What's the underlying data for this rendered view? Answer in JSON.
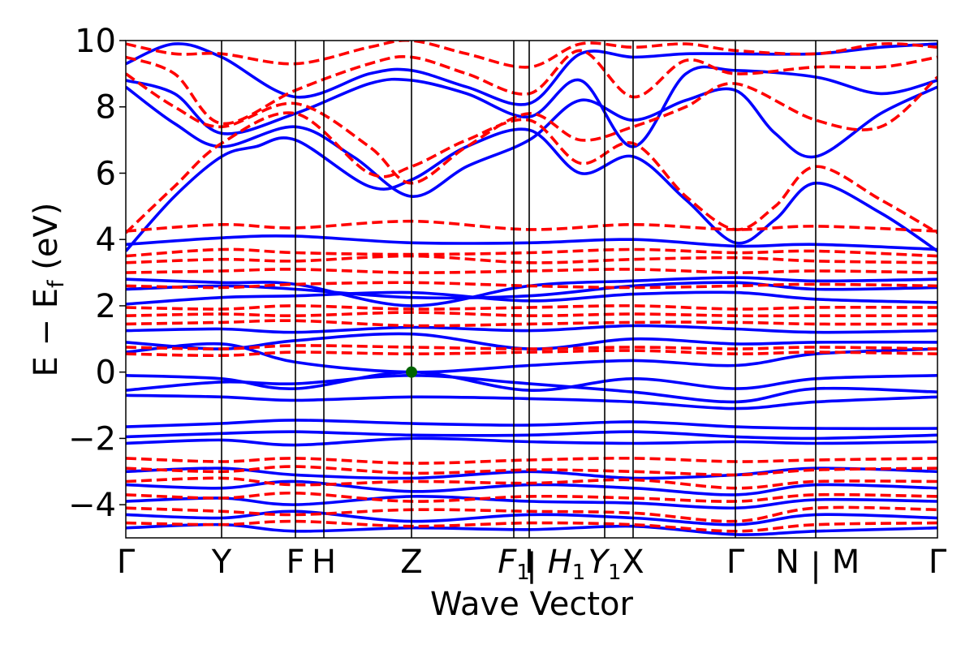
{
  "chart_data": {
    "type": "line",
    "xlabel": "Wave Vector",
    "ylabel": "E − E_f (eV)",
    "ylabel_parts": {
      "main": "E − E",
      "sub": "f",
      "unit": " (eV)"
    },
    "ylim": [
      -5,
      10
    ],
    "yticks": [
      "−4",
      "−2",
      "0",
      "2",
      "4",
      "6",
      "8",
      "10"
    ],
    "ytick_values": [
      -4,
      -2,
      0,
      2,
      4,
      6,
      8,
      10
    ],
    "grid": false,
    "legend": "none",
    "colors": {
      "spin_up": "#0000ff",
      "spin_down": "#ff0000",
      "marker": "#006400"
    },
    "kpoints": [
      {
        "label": "Γ",
        "x": 0.0
      },
      {
        "label": "Y",
        "x": 0.118
      },
      {
        "label": "F",
        "x": 0.209
      },
      {
        "label": "H",
        "x": 0.244
      },
      {
        "label": "Z",
        "x": 0.352
      },
      {
        "label": "F",
        "sub": "1",
        "x": 0.478
      },
      {
        "label": "I",
        "x": 0.497
      },
      {
        "label": "|",
        "x": 0.5
      },
      {
        "label": "H",
        "sub": "1",
        "x": 0.543
      },
      {
        "label": "Y",
        "sub": "1",
        "x": 0.59
      },
      {
        "label": "X",
        "x": 0.625
      },
      {
        "label": "Γ",
        "x": 0.751
      },
      {
        "label": "N",
        "x": 0.815
      },
      {
        "label": "|",
        "x": 0.85
      },
      {
        "label": "M",
        "x": 0.887
      },
      {
        "label": "Γ",
        "x": 1.0
      }
    ],
    "vertical_lines": [
      0.118,
      0.209,
      0.244,
      0.352,
      0.478,
      0.497,
      0.59,
      0.625,
      0.751,
      0.85
    ],
    "marker": {
      "x": 0.352,
      "y": 0.0
    },
    "series": [
      {
        "spin": "up",
        "x": [
          0,
          0.118,
          0.209,
          0.352,
          0.497,
          0.625,
          0.751,
          0.85,
          1.0
        ],
        "y": [
          -0.55,
          -0.3,
          -0.35,
          -0.1,
          -0.35,
          -0.6,
          -0.9,
          -0.5,
          -0.6
        ]
      },
      {
        "spin": "up",
        "x": [
          0,
          0.118,
          0.209,
          0.352,
          0.497,
          0.625,
          0.751,
          0.85,
          1.0
        ],
        "y": [
          -0.7,
          -0.75,
          -0.85,
          -0.75,
          -0.8,
          -0.9,
          -1.1,
          -0.9,
          -0.75
        ]
      },
      {
        "spin": "up",
        "x": [
          0,
          0.118,
          0.209,
          0.352,
          0.497,
          0.625,
          0.751,
          0.85,
          1.0
        ],
        "y": [
          -0.1,
          -0.2,
          -0.5,
          0.0,
          -0.55,
          -0.2,
          -0.5,
          -0.2,
          -0.1
        ]
      },
      {
        "spin": "up",
        "x": [
          0,
          0.118,
          0.209,
          0.352,
          0.497,
          0.625,
          0.751,
          0.85,
          1.0
        ],
        "y": [
          0.6,
          0.85,
          0.3,
          0.0,
          0.2,
          0.35,
          0.2,
          0.55,
          0.7
        ]
      },
      {
        "spin": "up",
        "x": [
          0,
          0.118,
          0.209,
          0.352,
          0.497,
          0.625,
          0.751,
          0.85,
          1.0
        ],
        "y": [
          0.9,
          0.7,
          0.95,
          1.15,
          0.7,
          1.0,
          0.85,
          0.9,
          0.9
        ]
      },
      {
        "spin": "up",
        "x": [
          0,
          0.118,
          0.209,
          0.352,
          0.497,
          0.625,
          0.751,
          0.85,
          1.0
        ],
        "y": [
          1.25,
          1.3,
          1.2,
          1.35,
          1.25,
          1.4,
          1.3,
          1.2,
          1.25
        ]
      },
      {
        "spin": "up",
        "x": [
          0,
          0.118,
          0.209,
          0.352,
          0.497,
          0.625,
          0.751,
          0.85,
          1.0
        ],
        "y": [
          2.05,
          2.25,
          2.3,
          2.4,
          2.15,
          2.35,
          2.4,
          2.2,
          2.1
        ]
      },
      {
        "spin": "up",
        "x": [
          0,
          0.118,
          0.209,
          0.352,
          0.497,
          0.625,
          0.751,
          0.85,
          1.0
        ],
        "y": [
          2.5,
          2.6,
          2.5,
          2.25,
          2.3,
          2.6,
          2.7,
          2.5,
          2.55
        ]
      },
      {
        "spin": "up",
        "x": [
          0,
          0.118,
          0.209,
          0.352,
          0.497,
          0.625,
          0.751,
          0.85,
          1.0
        ],
        "y": [
          2.8,
          2.7,
          2.65,
          2.0,
          2.6,
          2.75,
          2.85,
          2.75,
          2.8
        ]
      },
      {
        "spin": "up",
        "x": [
          0,
          0.118,
          0.209,
          0.352,
          0.497,
          0.625,
          0.751,
          0.85,
          1.0
        ],
        "y": [
          3.85,
          4.05,
          4.1,
          3.9,
          3.9,
          4.0,
          3.8,
          3.85,
          3.7
        ]
      },
      {
        "spin": "up",
        "x": [
          0,
          0.118,
          0.209,
          0.352,
          0.497,
          0.625,
          0.751,
          0.85,
          1.0
        ],
        "y": [
          -1.65,
          -1.55,
          -1.45,
          -1.55,
          -1.6,
          -1.5,
          -1.65,
          -1.7,
          -1.7
        ]
      },
      {
        "spin": "up",
        "x": [
          0,
          0.118,
          0.209,
          0.352,
          0.497,
          0.625,
          0.751,
          0.85,
          1.0
        ],
        "y": [
          -1.95,
          -1.85,
          -1.8,
          -1.9,
          -1.9,
          -1.8,
          -1.95,
          -2.0,
          -1.9
        ]
      },
      {
        "spin": "up",
        "x": [
          0,
          0.118,
          0.209,
          0.352,
          0.497,
          0.625,
          0.751,
          0.85,
          1.0
        ],
        "y": [
          -2.15,
          -2.05,
          -2.2,
          -2.0,
          -2.1,
          -2.15,
          -2.1,
          -2.15,
          -2.1
        ]
      },
      {
        "spin": "up",
        "x": [
          0,
          0.118,
          0.209,
          0.352,
          0.497,
          0.625,
          0.751,
          0.85,
          1.0
        ],
        "y": [
          -3.0,
          -2.9,
          -3.1,
          -3.2,
          -3.0,
          -3.2,
          -3.1,
          -2.9,
          -3.0
        ]
      },
      {
        "spin": "up",
        "x": [
          0,
          0.118,
          0.209,
          0.352,
          0.497,
          0.625,
          0.751,
          0.85,
          1.0
        ],
        "y": [
          -3.4,
          -3.5,
          -3.3,
          -3.6,
          -3.4,
          -3.5,
          -3.7,
          -3.4,
          -3.5
        ]
      },
      {
        "spin": "up",
        "x": [
          0,
          0.118,
          0.209,
          0.352,
          0.497,
          0.625,
          0.751,
          0.85,
          1.0
        ],
        "y": [
          -3.9,
          -3.8,
          -4.0,
          -3.75,
          -3.9,
          -3.95,
          -4.1,
          -3.85,
          -3.9
        ]
      },
      {
        "spin": "up",
        "x": [
          0,
          0.118,
          0.209,
          0.352,
          0.497,
          0.625,
          0.751,
          0.85,
          1.0
        ],
        "y": [
          -4.3,
          -4.4,
          -4.2,
          -4.5,
          -4.3,
          -4.4,
          -4.6,
          -4.3,
          -4.4
        ]
      },
      {
        "spin": "up",
        "x": [
          0,
          0.118,
          0.209,
          0.352,
          0.497,
          0.625,
          0.751,
          0.85,
          1.0
        ],
        "y": [
          -4.7,
          -4.6,
          -4.8,
          -4.7,
          -4.75,
          -4.65,
          -4.9,
          -4.8,
          -4.7
        ]
      },
      {
        "spin": "up",
        "x": [
          0,
          0.06,
          0.118,
          0.16,
          0.209,
          0.3,
          0.352,
          0.42,
          0.497,
          0.56,
          0.625,
          0.69,
          0.751,
          0.8,
          0.85,
          0.93,
          1.0
        ],
        "y": [
          3.65,
          5.3,
          6.5,
          6.8,
          7.0,
          5.6,
          5.8,
          6.8,
          7.3,
          6.0,
          6.5,
          5.2,
          3.9,
          4.6,
          5.7,
          4.8,
          3.65
        ]
      },
      {
        "spin": "up",
        "x": [
          0,
          0.06,
          0.118,
          0.209,
          0.28,
          0.352,
          0.42,
          0.497,
          0.56,
          0.625,
          0.69,
          0.751,
          0.8,
          0.85,
          0.93,
          1.0
        ],
        "y": [
          8.6,
          7.5,
          6.8,
          7.4,
          6.5,
          5.3,
          6.2,
          7.0,
          8.2,
          7.6,
          8.2,
          8.5,
          7.2,
          6.5,
          7.8,
          8.6
        ]
      },
      {
        "spin": "up",
        "x": [
          0,
          0.06,
          0.118,
          0.209,
          0.3,
          0.352,
          0.42,
          0.497,
          0.56,
          0.625,
          0.69,
          0.751,
          0.85,
          0.93,
          1.0
        ],
        "y": [
          8.8,
          8.4,
          7.2,
          7.8,
          8.7,
          8.8,
          8.4,
          7.7,
          8.8,
          6.8,
          9.0,
          9.1,
          8.9,
          8.4,
          8.8
        ]
      },
      {
        "spin": "up",
        "x": [
          0,
          0.06,
          0.118,
          0.209,
          0.3,
          0.352,
          0.42,
          0.497,
          0.56,
          0.625,
          0.69,
          0.751,
          0.85,
          0.93,
          1.0
        ],
        "y": [
          9.3,
          9.9,
          9.5,
          8.3,
          9.0,
          9.1,
          8.6,
          8.1,
          9.6,
          9.5,
          9.6,
          9.6,
          9.6,
          9.8,
          9.9
        ]
      },
      {
        "spin": "down",
        "x": [
          0,
          0.118,
          0.209,
          0.352,
          0.497,
          0.625,
          0.751,
          0.85,
          1.0
        ],
        "y": [
          0.55,
          0.5,
          0.6,
          0.55,
          0.6,
          0.65,
          0.55,
          0.6,
          0.55
        ]
      },
      {
        "spin": "down",
        "x": [
          0,
          0.118,
          0.209,
          0.352,
          0.497,
          0.625,
          0.751,
          0.85,
          1.0
        ],
        "y": [
          0.75,
          0.7,
          0.8,
          0.75,
          0.7,
          0.75,
          0.7,
          0.75,
          0.7
        ]
      },
      {
        "spin": "down",
        "x": [
          0,
          0.118,
          0.209,
          0.352,
          0.497,
          0.625,
          0.751,
          0.85,
          1.0
        ],
        "y": [
          1.45,
          1.5,
          1.55,
          1.4,
          1.45,
          1.5,
          1.5,
          1.45,
          1.45
        ]
      },
      {
        "spin": "down",
        "x": [
          0,
          0.118,
          0.209,
          0.352,
          0.497,
          0.625,
          0.751,
          0.85,
          1.0
        ],
        "y": [
          1.7,
          1.75,
          1.7,
          1.8,
          1.7,
          1.75,
          1.7,
          1.7,
          1.7
        ]
      },
      {
        "spin": "down",
        "x": [
          0,
          0.118,
          0.209,
          0.352,
          0.497,
          0.625,
          0.751,
          0.85,
          1.0
        ],
        "y": [
          1.95,
          1.9,
          2.0,
          1.9,
          1.95,
          2.0,
          1.9,
          1.95,
          1.95
        ]
      },
      {
        "spin": "down",
        "x": [
          0,
          0.118,
          0.209,
          0.352,
          0.497,
          0.625,
          0.751,
          0.85,
          1.0
        ],
        "y": [
          2.6,
          2.55,
          2.65,
          2.7,
          2.6,
          2.55,
          2.6,
          2.65,
          2.6
        ]
      },
      {
        "spin": "down",
        "x": [
          0,
          0.118,
          0.209,
          0.352,
          0.497,
          0.625,
          0.751,
          0.85,
          1.0
        ],
        "y": [
          3.0,
          3.05,
          3.1,
          3.0,
          3.05,
          3.1,
          3.0,
          3.05,
          3.0
        ]
      },
      {
        "spin": "down",
        "x": [
          0,
          0.118,
          0.209,
          0.352,
          0.497,
          0.625,
          0.751,
          0.85,
          1.0
        ],
        "y": [
          3.3,
          3.4,
          3.35,
          3.5,
          3.3,
          3.4,
          3.45,
          3.35,
          3.3
        ]
      },
      {
        "spin": "down",
        "x": [
          0,
          0.118,
          0.209,
          0.352,
          0.497,
          0.625,
          0.751,
          0.85,
          1.0
        ],
        "y": [
          3.5,
          3.7,
          3.6,
          3.55,
          3.6,
          3.7,
          3.6,
          3.65,
          3.5
        ]
      },
      {
        "spin": "down",
        "x": [
          0,
          0.118,
          0.209,
          0.352,
          0.497,
          0.625,
          0.751,
          0.85,
          1.0
        ],
        "y": [
          4.25,
          4.45,
          4.35,
          4.55,
          4.3,
          4.45,
          4.3,
          4.4,
          4.25
        ]
      },
      {
        "spin": "down",
        "x": [
          0,
          0.118,
          0.209,
          0.352,
          0.497,
          0.625,
          0.751,
          0.85,
          1.0
        ],
        "y": [
          -2.6,
          -2.7,
          -2.6,
          -2.75,
          -2.65,
          -2.6,
          -2.7,
          -2.65,
          -2.6
        ]
      },
      {
        "spin": "down",
        "x": [
          0,
          0.118,
          0.209,
          0.352,
          0.497,
          0.625,
          0.751,
          0.85,
          1.0
        ],
        "y": [
          -2.9,
          -3.0,
          -2.85,
          -3.05,
          -2.95,
          -3.0,
          -3.1,
          -2.95,
          -2.9
        ]
      },
      {
        "spin": "down",
        "x": [
          0,
          0.118,
          0.209,
          0.352,
          0.497,
          0.625,
          0.751,
          0.85,
          1.0
        ],
        "y": [
          -3.3,
          -3.2,
          -3.4,
          -3.3,
          -3.35,
          -3.25,
          -3.5,
          -3.3,
          -3.3
        ]
      },
      {
        "spin": "down",
        "x": [
          0,
          0.118,
          0.209,
          0.352,
          0.497,
          0.625,
          0.751,
          0.85,
          1.0
        ],
        "y": [
          -3.7,
          -3.8,
          -3.65,
          -3.9,
          -3.75,
          -3.8,
          -3.9,
          -3.7,
          -3.75
        ]
      },
      {
        "spin": "down",
        "x": [
          0,
          0.118,
          0.209,
          0.352,
          0.497,
          0.625,
          0.751,
          0.85,
          1.0
        ],
        "y": [
          -4.1,
          -4.2,
          -4.3,
          -4.15,
          -4.2,
          -4.25,
          -4.5,
          -4.1,
          -4.15
        ]
      },
      {
        "spin": "down",
        "x": [
          0,
          0.118,
          0.209,
          0.352,
          0.497,
          0.625,
          0.751,
          0.85,
          1.0
        ],
        "y": [
          -4.55,
          -4.6,
          -4.5,
          -4.65,
          -4.55,
          -4.6,
          -4.8,
          -4.6,
          -4.55
        ]
      },
      {
        "spin": "down",
        "x": [
          0,
          0.06,
          0.118,
          0.209,
          0.3,
          0.352,
          0.42,
          0.497,
          0.56,
          0.625,
          0.69,
          0.751,
          0.8,
          0.85,
          0.93,
          1.0
        ],
        "y": [
          4.2,
          5.6,
          6.9,
          7.8,
          6.0,
          6.2,
          7.0,
          7.6,
          6.3,
          6.9,
          5.3,
          4.3,
          5.0,
          6.2,
          5.2,
          4.2
        ]
      },
      {
        "spin": "down",
        "x": [
          0,
          0.06,
          0.118,
          0.209,
          0.3,
          0.352,
          0.42,
          0.497,
          0.56,
          0.625,
          0.69,
          0.751,
          0.85,
          0.93,
          1.0
        ],
        "y": [
          9.0,
          8.0,
          7.4,
          8.1,
          6.8,
          5.7,
          6.8,
          7.8,
          7.0,
          7.4,
          8.0,
          8.7,
          7.6,
          7.4,
          8.9
        ]
      },
      {
        "spin": "down",
        "x": [
          0,
          0.06,
          0.118,
          0.209,
          0.3,
          0.352,
          0.42,
          0.497,
          0.56,
          0.625,
          0.69,
          0.751,
          0.85,
          0.93,
          1.0
        ],
        "y": [
          9.5,
          9.0,
          7.5,
          8.5,
          9.3,
          9.5,
          9.0,
          8.4,
          9.7,
          8.3,
          9.4,
          9.0,
          9.2,
          9.2,
          9.5
        ]
      },
      {
        "spin": "down",
        "x": [
          0,
          0.06,
          0.118,
          0.209,
          0.3,
          0.352,
          0.42,
          0.497,
          0.56,
          0.625,
          0.69,
          0.751,
          0.85,
          0.93,
          1.0
        ],
        "y": [
          9.9,
          9.6,
          9.6,
          9.3,
          9.8,
          10.0,
          9.6,
          9.2,
          9.9,
          9.8,
          9.9,
          9.7,
          9.6,
          9.9,
          9.8
        ]
      }
    ]
  }
}
